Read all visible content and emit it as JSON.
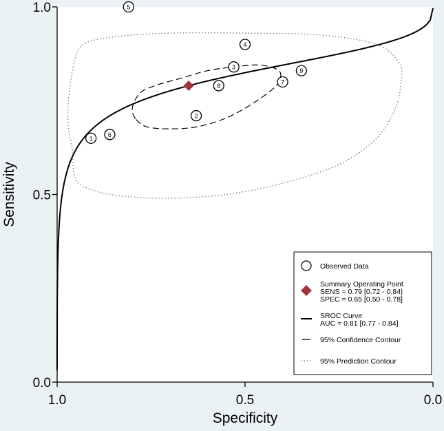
{
  "chart_data": {
    "type": "scatter",
    "xlabel": "Specificity",
    "ylabel": "Sensitivity",
    "xlim": [
      1.0,
      0.0
    ],
    "ylim": [
      0.0,
      1.0
    ],
    "x_reversed": true,
    "x_ticks": [
      {
        "value": 1.0,
        "label": "1.0"
      },
      {
        "value": 0.5,
        "label": "0.5"
      },
      {
        "value": 0.0,
        "label": "0.0"
      }
    ],
    "y_ticks": [
      {
        "value": 0.0,
        "label": "0.0"
      },
      {
        "value": 0.5,
        "label": "0.5"
      },
      {
        "value": 1.0,
        "label": "1.0"
      }
    ],
    "grid": false,
    "observed_data": [
      {
        "id": "1",
        "specificity": 0.91,
        "sensitivity": 0.65
      },
      {
        "id": "2",
        "specificity": 0.63,
        "sensitivity": 0.71
      },
      {
        "id": "3",
        "specificity": 0.53,
        "sensitivity": 0.84
      },
      {
        "id": "4",
        "specificity": 0.5,
        "sensitivity": 0.9
      },
      {
        "id": "5",
        "specificity": 0.81,
        "sensitivity": 1.0
      },
      {
        "id": "6",
        "specificity": 0.86,
        "sensitivity": 0.66
      },
      {
        "id": "7",
        "specificity": 0.4,
        "sensitivity": 0.8
      },
      {
        "id": "8",
        "specificity": 0.57,
        "sensitivity": 0.79
      },
      {
        "id": "9",
        "specificity": 0.35,
        "sensitivity": 0.83
      }
    ],
    "summary_point": {
      "specificity": 0.65,
      "sensitivity": 0.79,
      "color": "#a0363c"
    },
    "sroc_curve": {
      "auc_display": "AUC = 0.81 [0.77 - 0.84]"
    },
    "confidence_contour": {
      "points": [
        [
          0.79,
          0.7
        ],
        [
          0.76,
          0.68
        ],
        [
          0.7,
          0.675
        ],
        [
          0.63,
          0.68
        ],
        [
          0.56,
          0.7
        ],
        [
          0.5,
          0.73
        ],
        [
          0.44,
          0.77
        ],
        [
          0.41,
          0.8
        ],
        [
          0.41,
          0.83
        ],
        [
          0.46,
          0.845
        ],
        [
          0.53,
          0.84
        ],
        [
          0.6,
          0.83
        ],
        [
          0.67,
          0.81
        ],
        [
          0.74,
          0.79
        ],
        [
          0.78,
          0.77
        ],
        [
          0.8,
          0.73
        ],
        [
          0.79,
          0.7
        ]
      ]
    },
    "prediction_contour": {
      "points": [
        [
          0.96,
          0.62
        ],
        [
          0.95,
          0.54
        ],
        [
          0.9,
          0.51
        ],
        [
          0.82,
          0.495
        ],
        [
          0.7,
          0.49
        ],
        [
          0.55,
          0.5
        ],
        [
          0.4,
          0.53
        ],
        [
          0.25,
          0.58
        ],
        [
          0.15,
          0.65
        ],
        [
          0.1,
          0.73
        ],
        [
          0.085,
          0.8
        ],
        [
          0.09,
          0.85
        ],
        [
          0.15,
          0.9
        ],
        [
          0.3,
          0.925
        ],
        [
          0.5,
          0.93
        ],
        [
          0.7,
          0.93
        ],
        [
          0.85,
          0.92
        ],
        [
          0.93,
          0.9
        ],
        [
          0.955,
          0.85
        ],
        [
          0.97,
          0.75
        ],
        [
          0.97,
          0.68
        ],
        [
          0.96,
          0.62
        ]
      ]
    },
    "legend": {
      "position": "bottom-right",
      "items": [
        {
          "key": "observed",
          "lines": [
            "Observed Data"
          ]
        },
        {
          "key": "summary",
          "lines": [
            "Summary Operating Point",
            "SENS = 0.79 [0.72 - 0.84]",
            "SPEC = 0.65 [0.50 - 0.78]"
          ]
        },
        {
          "key": "sroc",
          "lines": [
            "SROC Curve",
            "AUC = 0.81 [0.77 - 0.84]"
          ]
        },
        {
          "key": "confidence",
          "lines": [
            "95% Confidence Contour"
          ]
        },
        {
          "key": "prediction",
          "lines": [
            "95% Prediction Contour"
          ]
        }
      ]
    },
    "colors": {
      "background": "#eaf2f3",
      "plot_background": "#ffffff",
      "line": "#000000",
      "prediction_contour": "#777777",
      "summary_point": "#a0363c"
    }
  }
}
